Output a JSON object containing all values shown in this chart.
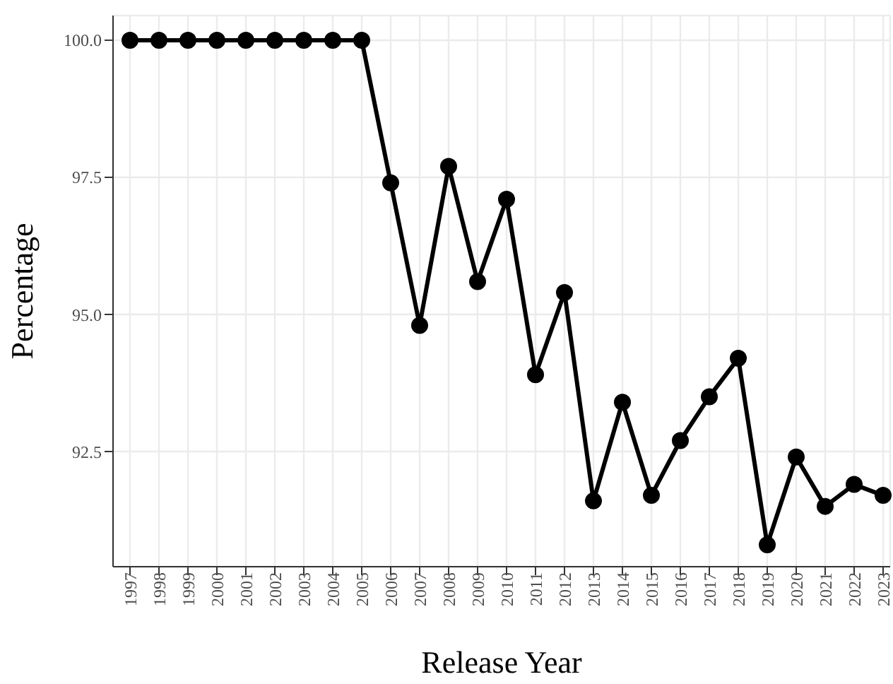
{
  "chart_data": {
    "type": "line",
    "xlabel": "Release Year",
    "ylabel": "Percentage",
    "categories": [
      "1997",
      "1998",
      "1999",
      "2000",
      "2001",
      "2002",
      "2003",
      "2004",
      "2005",
      "2006",
      "2007",
      "2008",
      "2009",
      "2010",
      "2011",
      "2012",
      "2013",
      "2014",
      "2015",
      "2016",
      "2017",
      "2018",
      "2019",
      "2020",
      "2021",
      "2022",
      "2023"
    ],
    "series": [
      {
        "color": "#000000",
        "values": [
          100,
          100,
          100,
          100,
          100,
          100,
          100,
          100,
          100,
          97.4,
          94.8,
          97.7,
          95.6,
          97.1,
          93.9,
          95.4,
          91.6,
          93.4,
          91.7,
          92.7,
          93.5,
          94.2,
          90.8,
          92.4,
          91.5,
          91.9,
          91.7
        ]
      }
    ],
    "ylim": [
      90.4,
      100.45
    ],
    "yticks": [
      {
        "value": 92.5,
        "label": "92.5"
      },
      {
        "value": 95,
        "label": "95.0"
      },
      {
        "value": 97.5,
        "label": "97.5"
      },
      {
        "value": 100,
        "label": "100.0"
      }
    ],
    "grid": true,
    "marker": "circle",
    "line_style": "solid",
    "legend": false
  }
}
